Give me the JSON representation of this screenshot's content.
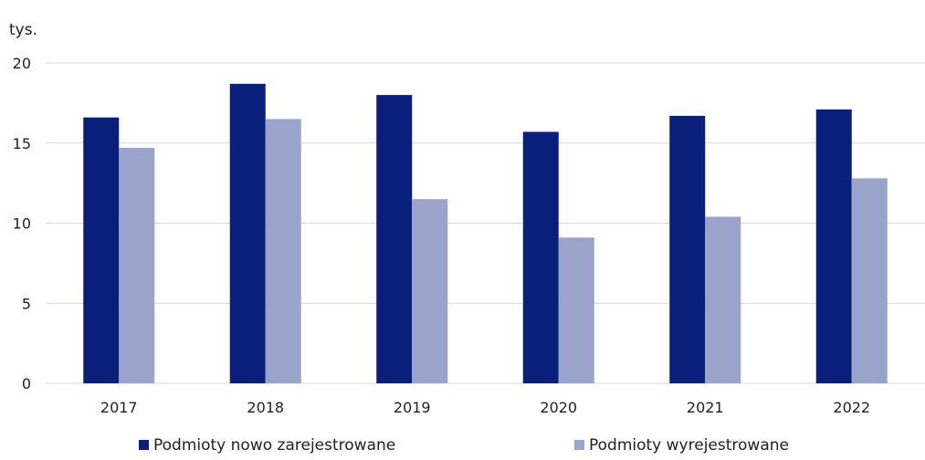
{
  "chart_data": {
    "type": "bar",
    "unit_label": "tys.",
    "categories": [
      "2017",
      "2018",
      "2019",
      "2020",
      "2021",
      "2022"
    ],
    "series": [
      {
        "name": "Podmioty nowo zarejestrowane",
        "color": "#0a1f7a",
        "values": [
          16.6,
          18.7,
          18.0,
          15.7,
          16.7,
          17.1
        ]
      },
      {
        "name": "Podmioty wyrejestrowane",
        "color": "#9aa3c9",
        "values": [
          14.7,
          16.5,
          11.5,
          9.1,
          10.4,
          12.8
        ]
      }
    ],
    "yticks": [
      "0",
      "5",
      "10",
      "15",
      "20"
    ],
    "ylim": [
      0,
      20
    ],
    "grid": true,
    "gridline_color": "#d9d9d9",
    "legend_position": "bottom"
  }
}
